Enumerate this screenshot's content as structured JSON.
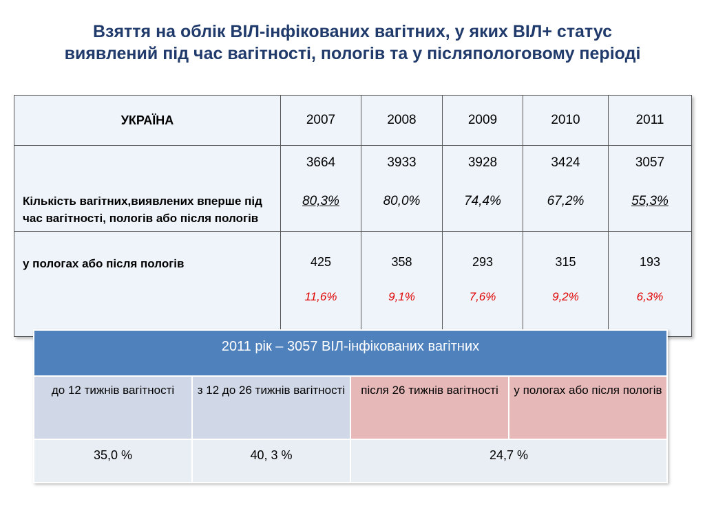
{
  "title": {
    "line1": "Взяття на облік ВІЛ-інфікованих вагітних, у яких ВІЛ+ статус",
    "line2": "виявлений під час вагітності, пологів та у післяпологовому періоді"
  },
  "table1": {
    "corner_label": "УКРАЇНА",
    "years": [
      "2007",
      "2008",
      "2009",
      "2010",
      "2011"
    ],
    "row1": {
      "label": "Кількість вагітних,виявлених вперше під час вагітності, пологів або після пологів",
      "counts": [
        "3664",
        "3933",
        "3928",
        "3424",
        "3057"
      ],
      "percents": [
        "80,3%",
        "80,0%",
        "74,4%",
        "67,2%",
        "55,3%"
      ]
    },
    "row2": {
      "label": "у пологах або після  пологів",
      "counts": [
        "425",
        "358",
        "293",
        "315",
        "193"
      ],
      "percents": [
        "11,6%",
        "9,1%",
        "7,6%",
        "9,2%",
        "6,3%"
      ]
    }
  },
  "table2": {
    "header": "2011 рік – 3057 ВІЛ-інфікованих вагітних",
    "categories": [
      "до 12 тижнів вагітності",
      "з 12 до 26 тижнів вагітності",
      "після 26 тижнів вагітності",
      "у пологах або після  пологів"
    ],
    "values": [
      "35,0 %",
      "40, 3 %",
      "24,7 %"
    ],
    "colors": {
      "header_bg": "#4f81bd",
      "blue_cell": "#d0d8e8",
      "pink_cell": "#e6b9b8",
      "value_row": "#e9edf4"
    }
  },
  "colors": {
    "title": "#1f3a6b",
    "highlight_percent": "#e00000",
    "table1_bg": "#eef4fa"
  }
}
